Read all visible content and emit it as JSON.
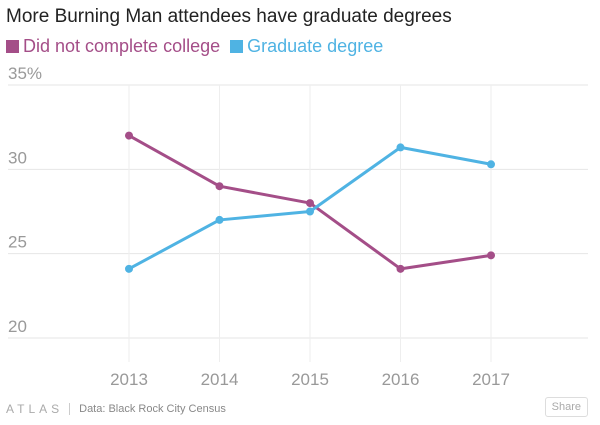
{
  "chart_data": {
    "type": "line",
    "title": "More Burning Man attendees have graduate degrees",
    "x": [
      "2013",
      "2014",
      "2015",
      "2016",
      "2017"
    ],
    "series": [
      {
        "name": "Did not complete college",
        "color": "#a44e88",
        "values": [
          32.0,
          29.0,
          28.0,
          24.1,
          24.9
        ]
      },
      {
        "name": "Graduate degree",
        "color": "#4fb3e3",
        "values": [
          24.1,
          27.0,
          27.5,
          31.3,
          30.3
        ]
      }
    ],
    "yticks": [
      {
        "value": 35,
        "label": "35%"
      },
      {
        "value": 30,
        "label": "30"
      },
      {
        "value": 25,
        "label": "25"
      },
      {
        "value": 20,
        "label": "20"
      }
    ],
    "ylim": [
      20,
      35
    ],
    "grid": true,
    "legend_position": "top-left"
  },
  "footer": {
    "brand": "ATLAS",
    "source": "Data:  Black Rock City Census",
    "share_label": "Share"
  }
}
